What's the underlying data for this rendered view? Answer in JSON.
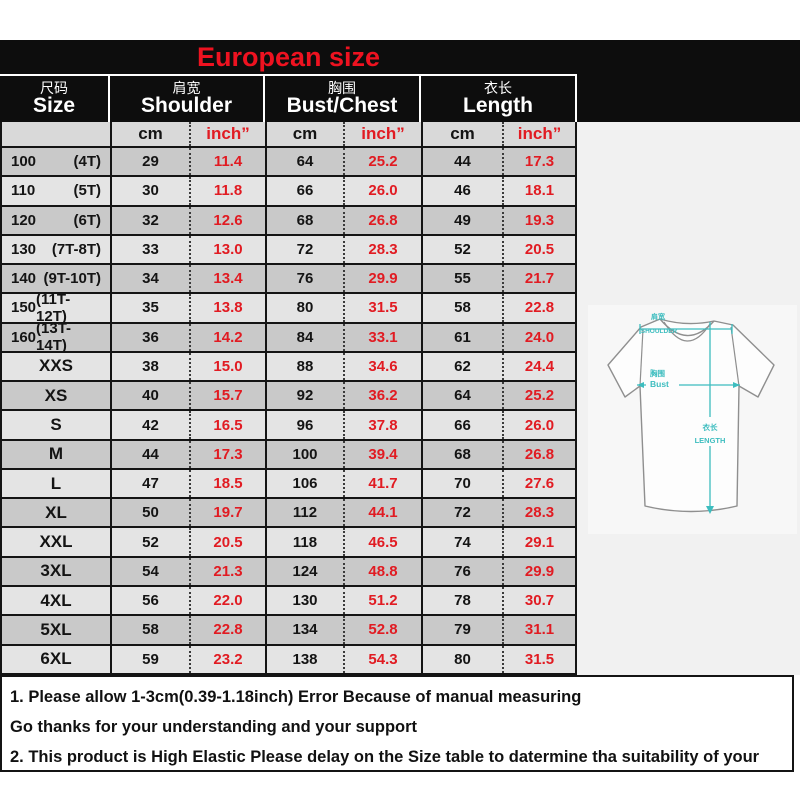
{
  "title": "European size",
  "table": {
    "groups": [
      {
        "zh": "尺码",
        "en": "Size"
      },
      {
        "zh": "肩宽",
        "en": "Shoulder"
      },
      {
        "zh": "胸围",
        "en": "Bust/Chest"
      },
      {
        "zh": "衣长",
        "en": "Length"
      }
    ],
    "unit_cm": "cm",
    "unit_inch": "inch”",
    "rows": [
      {
        "size": "100",
        "tag": "(4T)",
        "values": [
          "29",
          "11.4",
          "64",
          "25.2",
          "44",
          "17.3"
        ]
      },
      {
        "size": "110",
        "tag": "(5T)",
        "values": [
          "30",
          "11.8",
          "66",
          "26.0",
          "46",
          "18.1"
        ]
      },
      {
        "size": "120",
        "tag": "(6T)",
        "values": [
          "32",
          "12.6",
          "68",
          "26.8",
          "49",
          "19.3"
        ]
      },
      {
        "size": "130",
        "tag": "(7T-8T)",
        "values": [
          "33",
          "13.0",
          "72",
          "28.3",
          "52",
          "20.5"
        ]
      },
      {
        "size": "140",
        "tag": "(9T-10T)",
        "values": [
          "34",
          "13.4",
          "76",
          "29.9",
          "55",
          "21.7"
        ]
      },
      {
        "size": "150",
        "tag": "(11T-12T)",
        "values": [
          "35",
          "13.8",
          "80",
          "31.5",
          "58",
          "22.8"
        ]
      },
      {
        "size": "160",
        "tag": "(13T-14T)",
        "values": [
          "36",
          "14.2",
          "84",
          "33.1",
          "61",
          "24.0"
        ]
      },
      {
        "size": "XXS",
        "tag": "",
        "values": [
          "38",
          "15.0",
          "88",
          "34.6",
          "62",
          "24.4"
        ]
      },
      {
        "size": "XS",
        "tag": "",
        "values": [
          "40",
          "15.7",
          "92",
          "36.2",
          "64",
          "25.2"
        ]
      },
      {
        "size": "S",
        "tag": "",
        "values": [
          "42",
          "16.5",
          "96",
          "37.8",
          "66",
          "26.0"
        ]
      },
      {
        "size": "M",
        "tag": "",
        "values": [
          "44",
          "17.3",
          "100",
          "39.4",
          "68",
          "26.8"
        ]
      },
      {
        "size": "L",
        "tag": "",
        "values": [
          "47",
          "18.5",
          "106",
          "41.7",
          "70",
          "27.6"
        ]
      },
      {
        "size": "XL",
        "tag": "",
        "values": [
          "50",
          "19.7",
          "112",
          "44.1",
          "72",
          "28.3"
        ]
      },
      {
        "size": "XXL",
        "tag": "",
        "values": [
          "52",
          "20.5",
          "118",
          "46.5",
          "74",
          "29.1"
        ]
      },
      {
        "size": "3XL",
        "tag": "",
        "values": [
          "54",
          "21.3",
          "124",
          "48.8",
          "76",
          "29.9"
        ]
      },
      {
        "size": "4XL",
        "tag": "",
        "values": [
          "56",
          "22.0",
          "130",
          "51.2",
          "78",
          "30.7"
        ]
      },
      {
        "size": "5XL",
        "tag": "",
        "values": [
          "58",
          "22.8",
          "134",
          "52.8",
          "79",
          "31.1"
        ]
      },
      {
        "size": "6XL",
        "tag": "",
        "values": [
          "59",
          "23.2",
          "138",
          "54.3",
          "80",
          "31.5"
        ]
      }
    ]
  },
  "notes": [
    "1. Please allow 1-3cm(0.39-1.18inch) Error Because of manual measuring",
    "Go thanks for your understanding and your support",
    "2. This product is High Elastic  Please delay on the Size table to datermine tha suitability of your"
  ],
  "diagram": {
    "shoulder_zh": "肩宽",
    "shoulder_en": "SHOULDER",
    "bust_zh": "胸围",
    "bust_en": "Bust",
    "length_zh": "衣长",
    "length_en": "LENGTH"
  },
  "colors": {
    "title_red": "#ee1220",
    "value_red": "#e11b22",
    "teal": "#3dbdbf",
    "row_dark": "#c9c9c9",
    "row_light": "#e4e4e4",
    "header_black": "#0d0d0d"
  }
}
